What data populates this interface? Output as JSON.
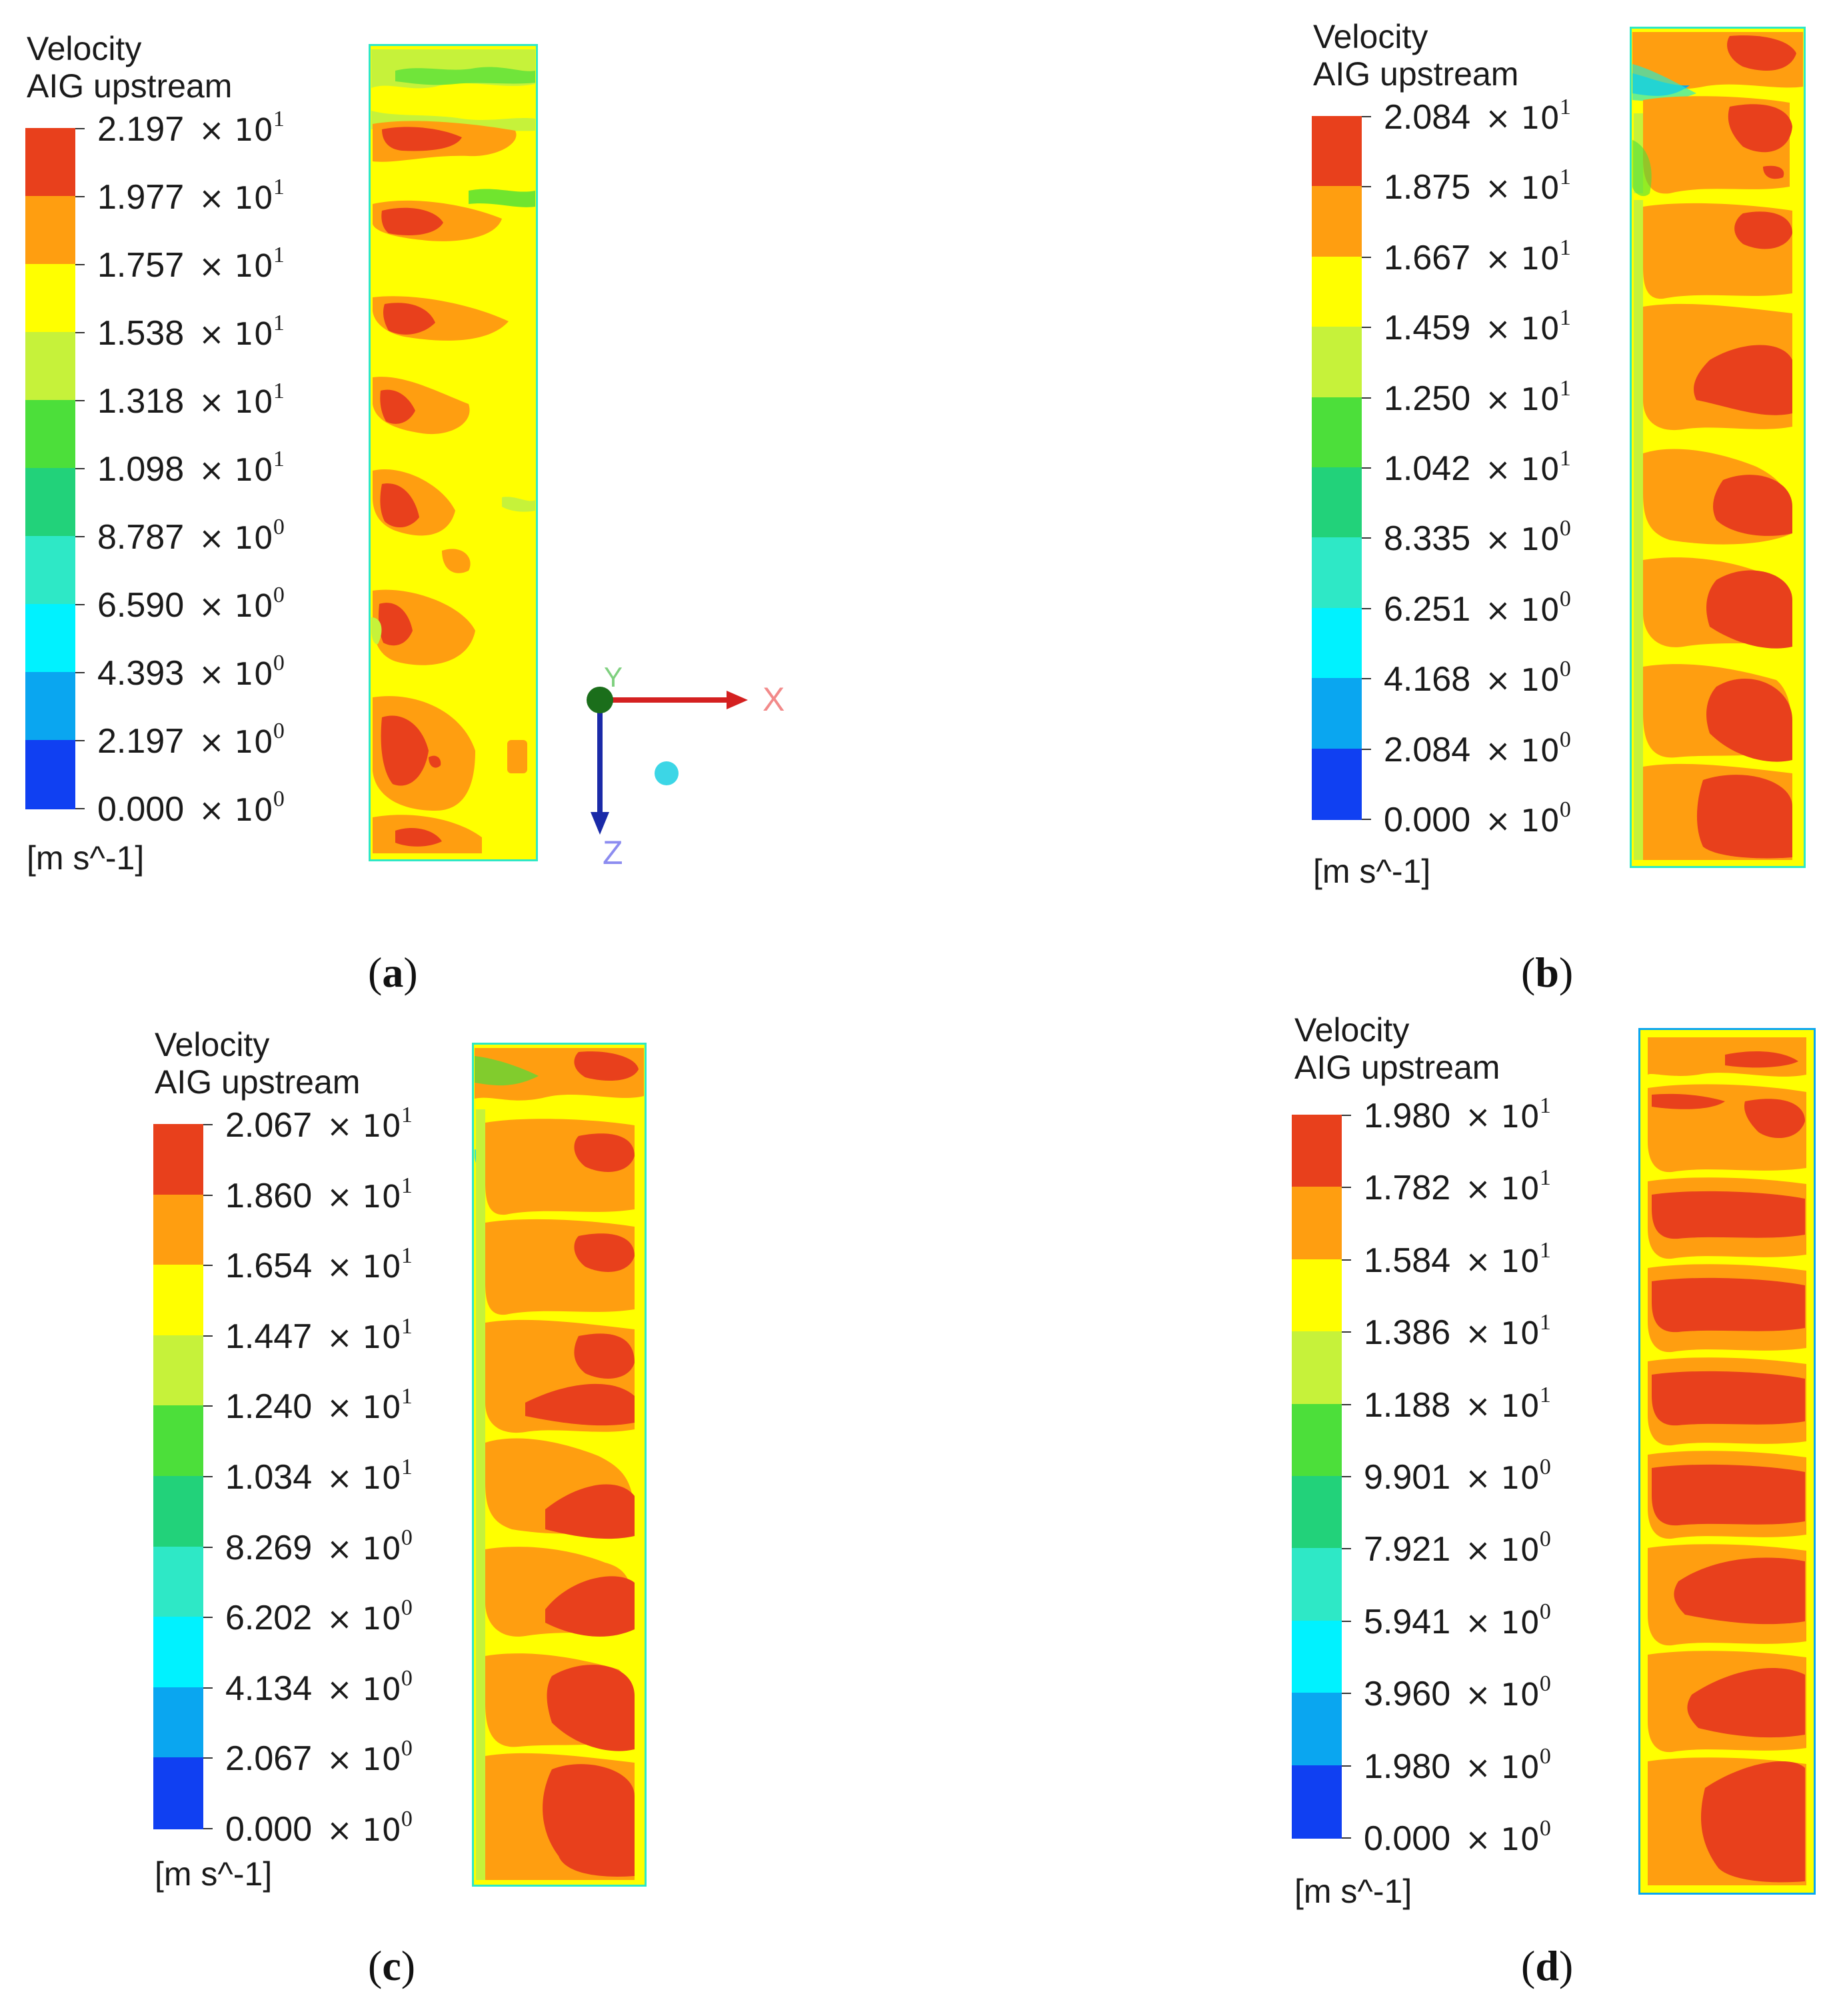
{
  "panels": [
    {
      "id": "a",
      "title": "Velocity",
      "subtitle": "AIG upstream",
      "units": "[m s^-1]",
      "caption": "a",
      "levels": [
        {
          "mantissa": "2.197",
          "exponent": "1"
        },
        {
          "mantissa": "1.977",
          "exponent": "1"
        },
        {
          "mantissa": "1.757",
          "exponent": "1"
        },
        {
          "mantissa": "1.538",
          "exponent": "1"
        },
        {
          "mantissa": "1.318",
          "exponent": "1"
        },
        {
          "mantissa": "1.098",
          "exponent": "1"
        },
        {
          "mantissa": "8.787",
          "exponent": "0"
        },
        {
          "mantissa": "6.590",
          "exponent": "0"
        },
        {
          "mantissa": "4.393",
          "exponent": "0"
        },
        {
          "mantissa": "2.197",
          "exponent": "0"
        },
        {
          "mantissa": "0.000",
          "exponent": "0"
        }
      ]
    },
    {
      "id": "b",
      "title": "Velocity",
      "subtitle": "AIG upstream",
      "units": "[m s^-1]",
      "caption": "b",
      "levels": [
        {
          "mantissa": "2.084",
          "exponent": "1"
        },
        {
          "mantissa": "1.875",
          "exponent": "1"
        },
        {
          "mantissa": "1.667",
          "exponent": "1"
        },
        {
          "mantissa": "1.459",
          "exponent": "1"
        },
        {
          "mantissa": "1.250",
          "exponent": "1"
        },
        {
          "mantissa": "1.042",
          "exponent": "1"
        },
        {
          "mantissa": "8.335",
          "exponent": "0"
        },
        {
          "mantissa": "6.251",
          "exponent": "0"
        },
        {
          "mantissa": "4.168",
          "exponent": "0"
        },
        {
          "mantissa": "2.084",
          "exponent": "0"
        },
        {
          "mantissa": "0.000",
          "exponent": "0"
        }
      ]
    },
    {
      "id": "c",
      "title": "Velocity",
      "subtitle": "AIG upstream",
      "units": "[m s^-1]",
      "caption": "c",
      "levels": [
        {
          "mantissa": "2.067",
          "exponent": "1"
        },
        {
          "mantissa": "1.860",
          "exponent": "1"
        },
        {
          "mantissa": "1.654",
          "exponent": "1"
        },
        {
          "mantissa": "1.447",
          "exponent": "1"
        },
        {
          "mantissa": "1.240",
          "exponent": "1"
        },
        {
          "mantissa": "1.034",
          "exponent": "1"
        },
        {
          "mantissa": "8.269",
          "exponent": "0"
        },
        {
          "mantissa": "6.202",
          "exponent": "0"
        },
        {
          "mantissa": "4.134",
          "exponent": "0"
        },
        {
          "mantissa": "2.067",
          "exponent": "0"
        },
        {
          "mantissa": "0.000",
          "exponent": "0"
        }
      ]
    },
    {
      "id": "d",
      "title": "Velocity",
      "subtitle": "AIG upstream",
      "units": "[m s^-1]",
      "caption": "d",
      "levels": [
        {
          "mantissa": "1.980",
          "exponent": "1"
        },
        {
          "mantissa": "1.782",
          "exponent": "1"
        },
        {
          "mantissa": "1.584",
          "exponent": "1"
        },
        {
          "mantissa": "1.386",
          "exponent": "1"
        },
        {
          "mantissa": "1.188",
          "exponent": "1"
        },
        {
          "mantissa": "9.901",
          "exponent": "0"
        },
        {
          "mantissa": "7.921",
          "exponent": "0"
        },
        {
          "mantissa": "5.941",
          "exponent": "0"
        },
        {
          "mantissa": "3.960",
          "exponent": "0"
        },
        {
          "mantissa": "1.980",
          "exponent": "0"
        },
        {
          "mantissa": "0.000",
          "exponent": "0"
        }
      ]
    }
  ],
  "colormap": [
    "#e8401c",
    "#ff9e10",
    "#ffff00",
    "#c6f23a",
    "#4cdf3a",
    "#22d27a",
    "#2ee8c6",
    "#00f2ff",
    "#0aa6f0",
    "#1040f2"
  ],
  "axes_triad": {
    "x_label": "X",
    "y_label": "Y",
    "z_label": "Z"
  }
}
